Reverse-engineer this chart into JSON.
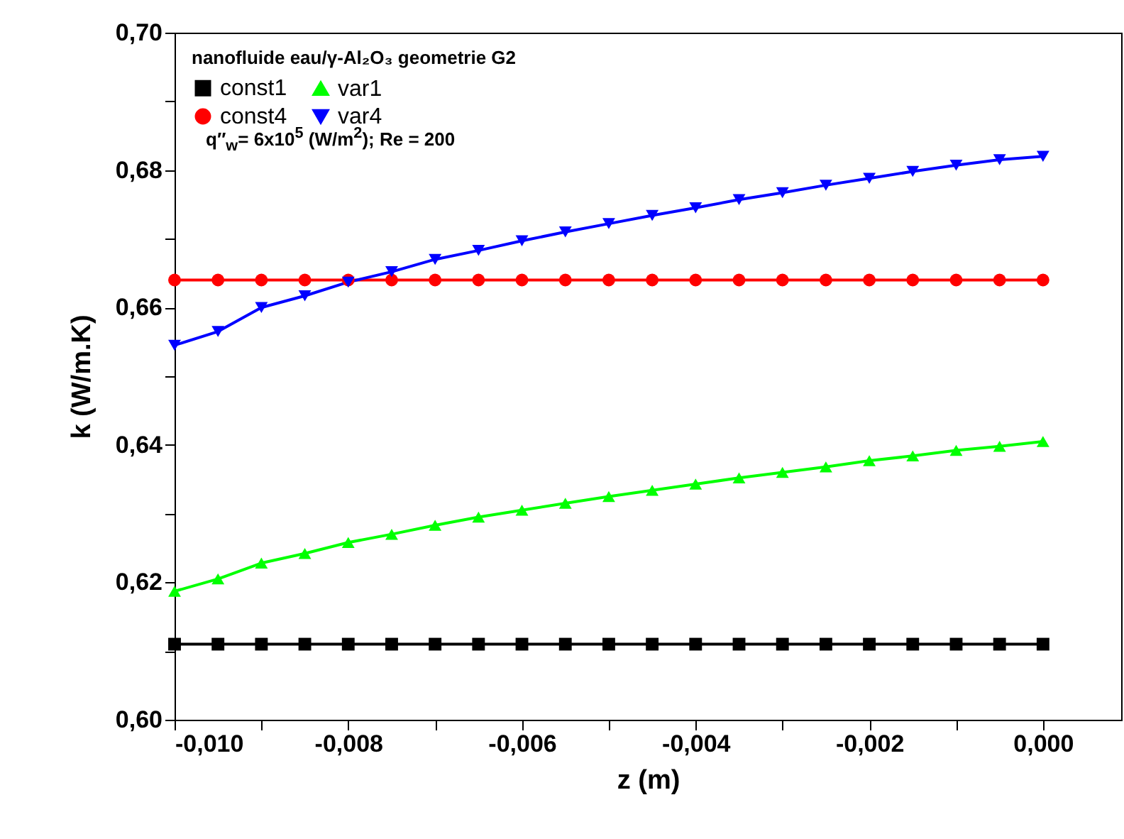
{
  "chart_data": {
    "type": "line",
    "xlabel": "z (m)",
    "ylabel": "k (W/m.K)",
    "legend_title": "nanofluide eau/γ-Al₂O₃  geometrie G2",
    "annotations": [
      "q″$_{w}$= 6x10$^{5}$ (W/m$^{2}$); Re = 200"
    ],
    "x": [
      -0.01,
      -0.0095,
      -0.009,
      -0.0085,
      -0.008,
      -0.0075,
      -0.007,
      -0.0065,
      -0.006,
      -0.0055,
      -0.005,
      -0.0045,
      -0.004,
      -0.0035,
      -0.003,
      -0.0025,
      -0.002,
      -0.0015,
      -0.001,
      -0.0005,
      0
    ],
    "series": [
      {
        "name": "const1",
        "color": "#000000",
        "marker": "square",
        "values": [
          0.611,
          0.611,
          0.611,
          0.611,
          0.611,
          0.611,
          0.611,
          0.611,
          0.611,
          0.611,
          0.611,
          0.611,
          0.611,
          0.611,
          0.611,
          0.611,
          0.611,
          0.611,
          0.611,
          0.611,
          0.611
        ]
      },
      {
        "name": "var1",
        "color": "#00ff00",
        "marker": "triangle",
        "values": [
          0.6187,
          0.6205,
          0.6228,
          0.6242,
          0.6258,
          0.627,
          0.6283,
          0.6295,
          0.6305,
          0.6315,
          0.6325,
          0.6334,
          0.6343,
          0.6352,
          0.636,
          0.6368,
          0.6377,
          0.6384,
          0.6392,
          0.6398,
          0.6405
        ]
      },
      {
        "name": "const4",
        "color": "#ff0000",
        "marker": "circle",
        "values": [
          0.664,
          0.664,
          0.664,
          0.664,
          0.664,
          0.664,
          0.664,
          0.664,
          0.664,
          0.664,
          0.664,
          0.664,
          0.664,
          0.664,
          0.664,
          0.664,
          0.664,
          0.664,
          0.664,
          0.664,
          0.664
        ]
      },
      {
        "name": "var4",
        "color": "#0000ff",
        "marker": "triangle-down",
        "values": [
          0.6545,
          0.6565,
          0.66,
          0.6617,
          0.6637,
          0.6652,
          0.667,
          0.6683,
          0.6697,
          0.671,
          0.6722,
          0.6734,
          0.6745,
          0.6757,
          0.6767,
          0.6778,
          0.6788,
          0.6798,
          0.6807,
          0.6815,
          0.682
        ]
      }
    ],
    "xlim": [
      -0.01,
      0.0009
    ],
    "xticks": [
      {
        "value": -0.01,
        "label": "-0,010"
      },
      {
        "value": -0.009,
        "label": null
      },
      {
        "value": -0.008,
        "label": "-0,008"
      },
      {
        "value": -0.007,
        "label": null
      },
      {
        "value": -0.006,
        "label": "-0,006"
      },
      {
        "value": -0.005,
        "label": null
      },
      {
        "value": -0.004,
        "label": "-0,004"
      },
      {
        "value": -0.003,
        "label": null
      },
      {
        "value": -0.002,
        "label": "-0,002"
      },
      {
        "value": -0.001,
        "label": null
      },
      {
        "value": 0,
        "label": "0,000"
      }
    ],
    "ylim": [
      0.6,
      0.7
    ],
    "yticks": [
      {
        "value": 0.6,
        "label": "0,60"
      },
      {
        "value": 0.61,
        "label": null
      },
      {
        "value": 0.62,
        "label": "0,62"
      },
      {
        "value": 0.63,
        "label": null
      },
      {
        "value": 0.64,
        "label": "0,64"
      },
      {
        "value": 0.65,
        "label": null
      },
      {
        "value": 0.66,
        "label": "0,66"
      },
      {
        "value": 0.67,
        "label": null
      },
      {
        "value": 0.68,
        "label": "0,68"
      },
      {
        "value": 0.69,
        "label": null
      },
      {
        "value": 0.7,
        "label": "0,70"
      }
    ],
    "grid": false,
    "legend": "top left",
    "line_style": "solid"
  }
}
